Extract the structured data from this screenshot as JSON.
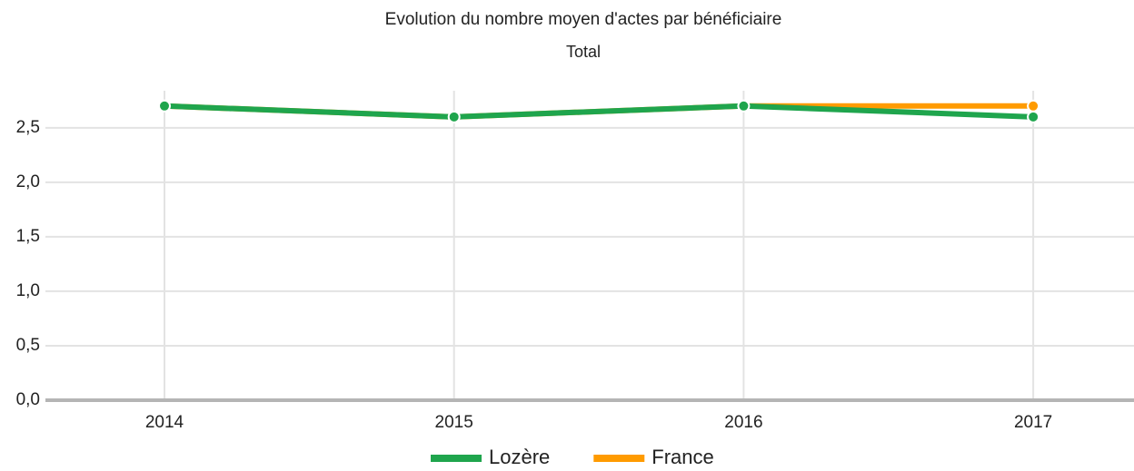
{
  "chart_data": {
    "type": "line",
    "title": "Evolution du nombre moyen d'actes par bénéficiaire",
    "subtitle": "Total",
    "categories": [
      "2014",
      "2015",
      "2016",
      "2017"
    ],
    "series": [
      {
        "name": "Lozère",
        "color": "#1fa54d",
        "values": [
          2.7,
          2.6,
          2.7,
          2.6
        ]
      },
      {
        "name": "France",
        "color": "#ff9b00",
        "values": [
          2.7,
          2.6,
          2.7,
          2.7
        ]
      }
    ],
    "ylim": [
      0,
      2.84
    ],
    "yticks": [
      {
        "value": 0,
        "label": "0,0"
      },
      {
        "value": 0.5,
        "label": "0,5"
      },
      {
        "value": 1,
        "label": "1,0"
      },
      {
        "value": 1.5,
        "label": "1,5"
      },
      {
        "value": 2,
        "label": "2,0"
      },
      {
        "value": 2.5,
        "label": "2,5"
      }
    ],
    "grid": true,
    "legend": "bottom"
  }
}
